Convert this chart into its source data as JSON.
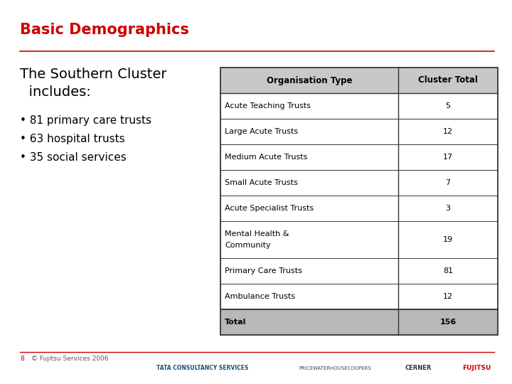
{
  "title": "Basic Demographics",
  "title_color": "#cc0000",
  "cluster_heading_line1": "The Southern Cluster",
  "cluster_heading_line2": "  includes:",
  "bullet_points": [
    "• 81 primary care trusts",
    "• 63 hospital trusts",
    "• 35 social services"
  ],
  "table_headers": [
    "Organisation Type",
    "Cluster Total"
  ],
  "table_rows": [
    [
      "Acute Teaching Trusts",
      "5"
    ],
    [
      "Large Acute Trusts",
      "12"
    ],
    [
      "Medium Acute Trusts",
      "17"
    ],
    [
      "Small Acute Trusts",
      "7"
    ],
    [
      "Acute Specialist Trusts",
      "3"
    ],
    [
      "Mental Health &\nCommunity",
      "19"
    ],
    [
      "Primary Care Trusts",
      "81"
    ],
    [
      "Ambulance Trusts",
      "12"
    ],
    [
      "Total",
      "156"
    ]
  ],
  "header_bg": "#c8c8c8",
  "total_bg": "#b8b8b8",
  "row_bg": "#ffffff",
  "footer_num": "8",
  "footer_text": "© Fujitsu Services 2006",
  "footer_color": "#cc0000",
  "bg_color": "#ffffff",
  "line_color": "#cc0000",
  "table_border_color": "#333333",
  "title_fontsize": 15,
  "header_font_size": 8.5,
  "body_font_size": 8,
  "cluster_font_size": 14,
  "bullet_font_size": 11
}
